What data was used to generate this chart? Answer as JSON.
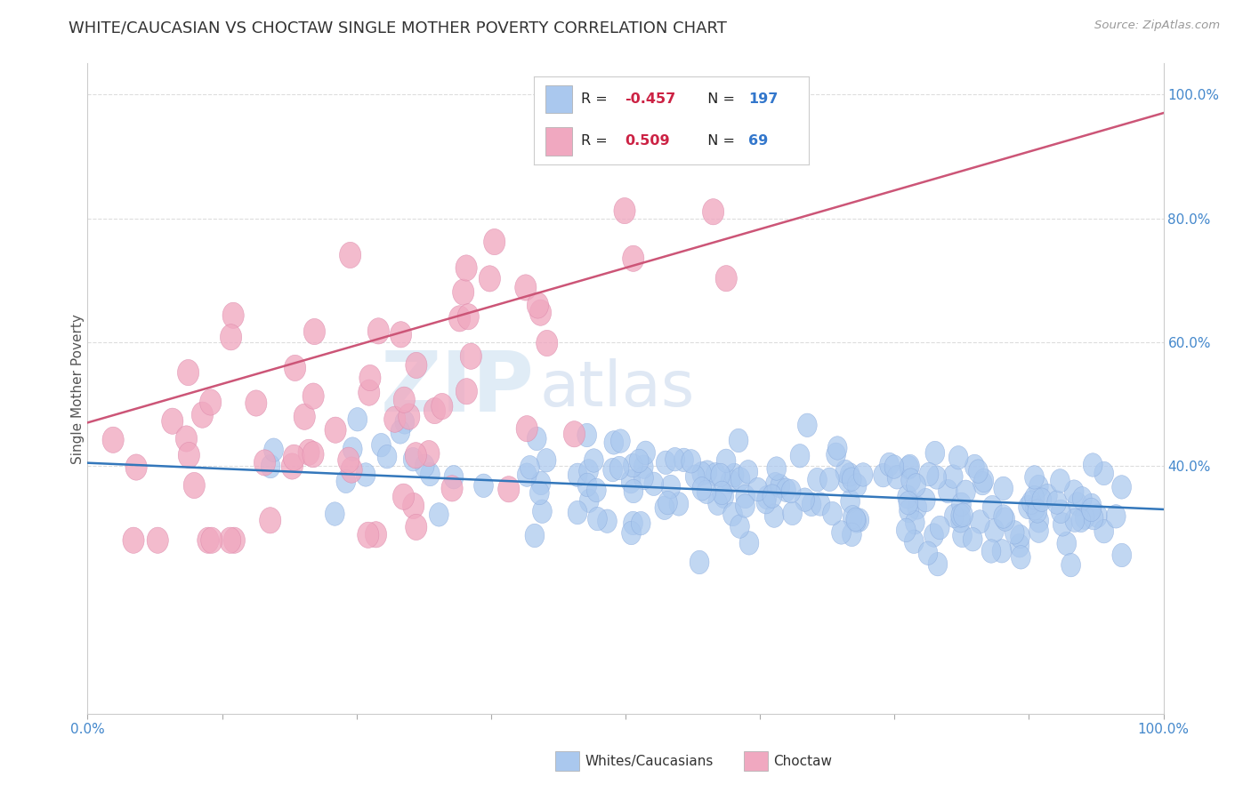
{
  "title": "WHITE/CAUCASIAN VS CHOCTAW SINGLE MOTHER POVERTY CORRELATION CHART",
  "source": "Source: ZipAtlas.com",
  "ylabel": "Single Mother Poverty",
  "xlim": [
    0.0,
    1.0
  ],
  "ylim": [
    0.0,
    1.05
  ],
  "ytick_positions": [
    0.4,
    0.6,
    0.8,
    1.0
  ],
  "ytick_labels": [
    "40.0%",
    "60.0%",
    "80.0%",
    "100.0%"
  ],
  "blue_color": "#aac8ee",
  "blue_edge_color": "#88aadd",
  "pink_color": "#f0a8c0",
  "pink_edge_color": "#dd88aa",
  "blue_line_color": "#3377bb",
  "pink_line_color": "#cc5577",
  "legend_R_blue": "-0.457",
  "legend_N_blue": "197",
  "legend_R_pink": "0.509",
  "legend_N_pink": "69",
  "watermark_zip": "ZIP",
  "watermark_atlas": "atlas",
  "background_color": "#ffffff",
  "grid_color": "#dddddd",
  "axis_label_color": "#4488cc",
  "blue_trend_intercept": 0.405,
  "blue_trend_slope": -0.075,
  "pink_trend_intercept": 0.47,
  "pink_trend_slope": 0.5
}
